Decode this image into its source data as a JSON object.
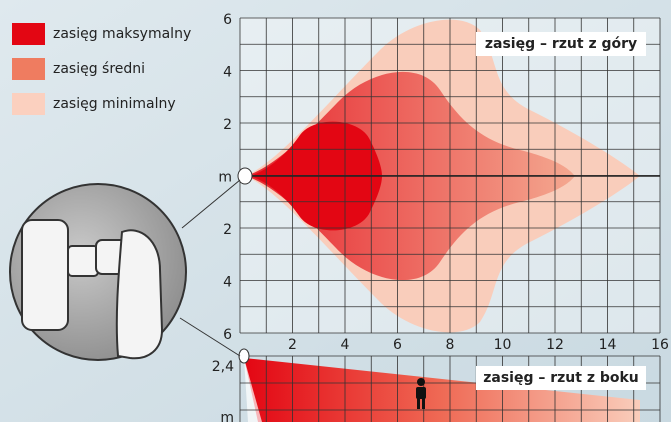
{
  "legend": [
    "zasięg maksymalny",
    "zasięg średni",
    "zasięg minimalny"
  ],
  "top_view": {
    "title": "zasięg – rzut z góry",
    "y_labels": [
      "6",
      "4",
      "2",
      "m",
      "2",
      "4",
      "6"
    ],
    "x_labels": [
      "2",
      "4",
      "6",
      "8",
      "10",
      "12",
      "14",
      "16"
    ]
  },
  "side_view": {
    "title": "zasięg – rzut z boku",
    "y_labels": [
      "2,4",
      "m"
    ]
  }
}
